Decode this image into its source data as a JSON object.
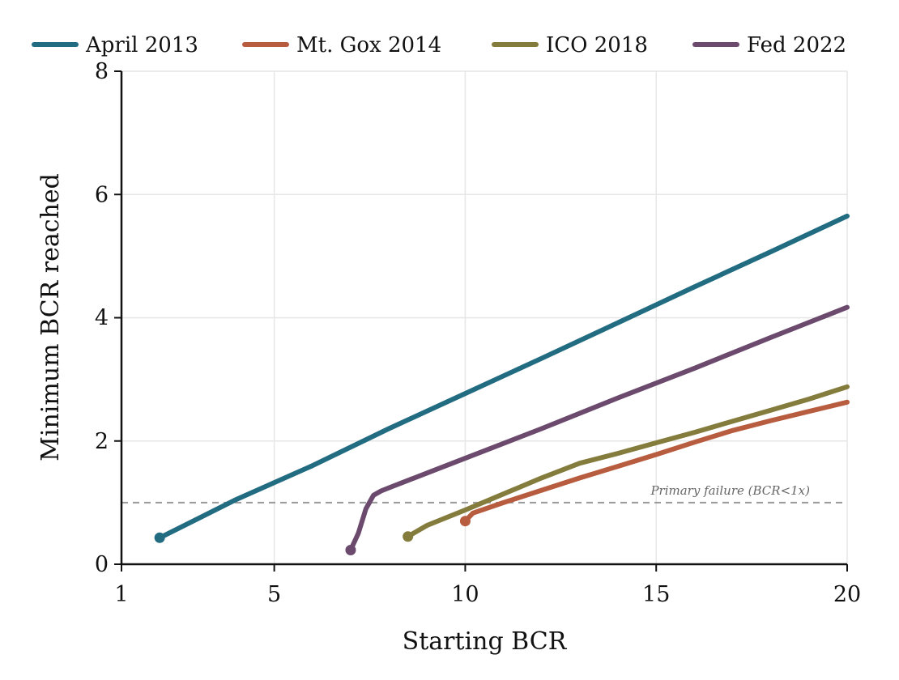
{
  "chart_data": {
    "type": "line",
    "title": "",
    "xlabel": "Starting BCR",
    "ylabel": "Minimum BCR reached",
    "xlim": [
      1,
      20
    ],
    "ylim": [
      0,
      8
    ],
    "xticks": [
      1,
      5,
      10,
      15,
      20
    ],
    "xtick_labels": [
      "1",
      "5",
      "10",
      "15",
      "20"
    ],
    "yticks": [
      0,
      2,
      4,
      6,
      8
    ],
    "ytick_labels": [
      "0",
      "2",
      "4",
      "6",
      "8"
    ],
    "grid": true,
    "legend_position": "top",
    "reference_line": {
      "y": 1,
      "label": "Primary failure (BCR<1x)",
      "color": "#999999"
    },
    "series": [
      {
        "name": "April 2013",
        "color": "#226c82",
        "x": [
          2,
          4,
          6,
          8,
          10,
          12,
          14,
          16,
          18,
          20
        ],
        "y": [
          0.43,
          1.05,
          1.6,
          2.2,
          2.77,
          3.34,
          3.92,
          4.5,
          5.07,
          5.65
        ]
      },
      {
        "name": "Mt. Gox 2014",
        "color": "#b85c3f",
        "x": [
          10,
          10.2,
          11,
          12,
          13,
          14,
          15,
          16,
          17,
          18,
          19,
          20
        ],
        "y": [
          0.7,
          0.83,
          1.0,
          1.2,
          1.4,
          1.59,
          1.78,
          1.98,
          2.17,
          2.33,
          2.48,
          2.63
        ]
      },
      {
        "name": "ICO 2018",
        "color": "#847c3c",
        "x": [
          8.5,
          9,
          10,
          11,
          12,
          13,
          14,
          15,
          16,
          17,
          18,
          19,
          20
        ],
        "y": [
          0.45,
          0.63,
          0.88,
          1.14,
          1.4,
          1.64,
          1.8,
          1.97,
          2.14,
          2.32,
          2.5,
          2.68,
          2.88
        ]
      },
      {
        "name": "Fed 2022",
        "color": "#6b4a6e",
        "x": [
          7,
          7.2,
          7.4,
          7.6,
          7.8,
          8,
          9,
          10,
          12,
          14,
          16,
          18,
          20
        ],
        "y": [
          0.23,
          0.5,
          0.9,
          1.12,
          1.19,
          1.24,
          1.48,
          1.72,
          2.2,
          2.7,
          3.18,
          3.68,
          4.17
        ]
      }
    ]
  }
}
